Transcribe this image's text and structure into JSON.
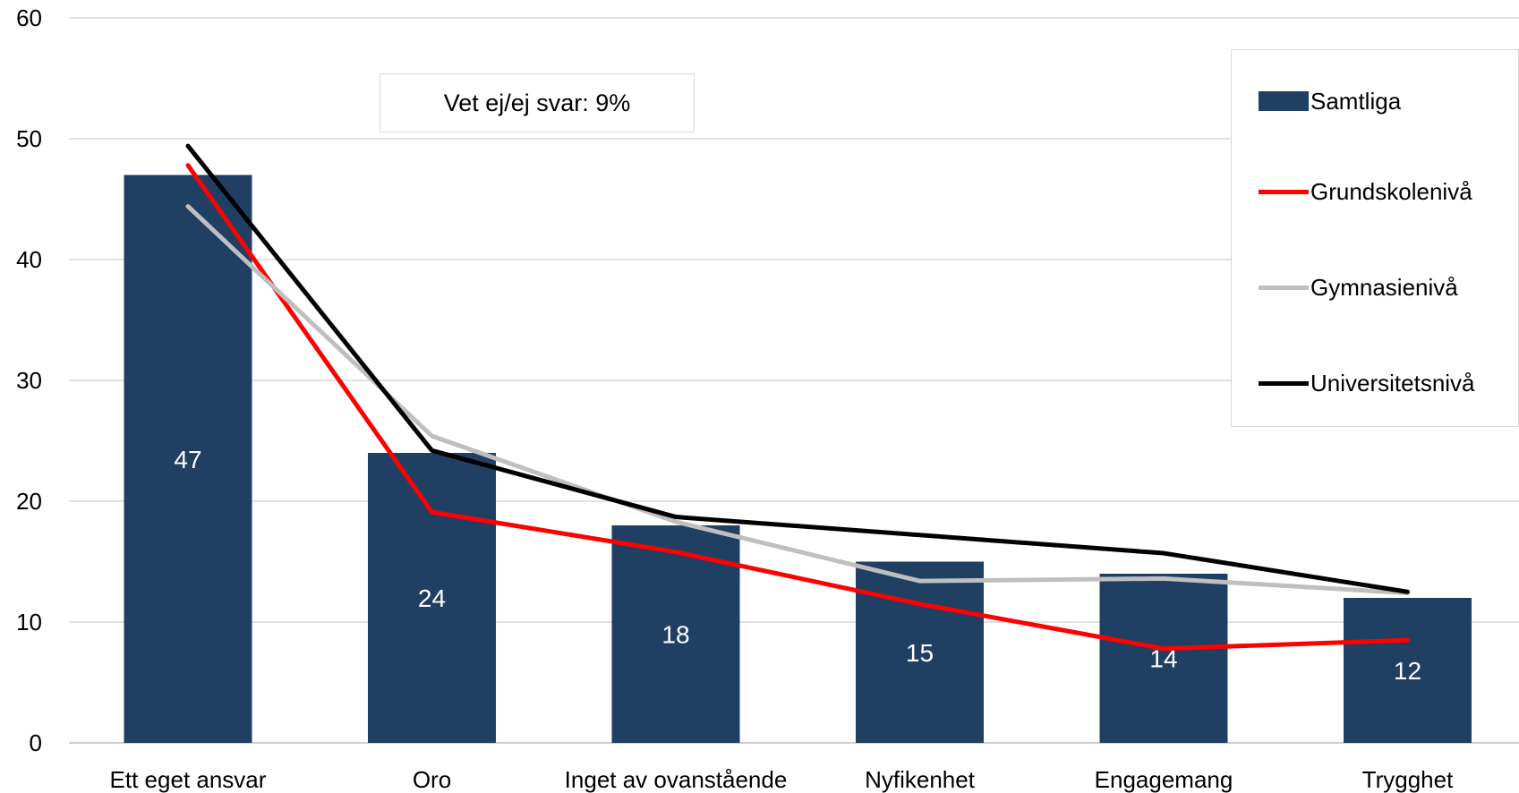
{
  "chart_data": {
    "type": "bar",
    "categories": [
      "Ett eget ansvar",
      "Oro",
      "Inget av ovanstående",
      "Nyfikenhet",
      "Engagemang",
      "Trygghet"
    ],
    "ylim": [
      0,
      60
    ],
    "yticks": [
      0,
      10,
      20,
      30,
      40,
      50,
      60
    ],
    "grid": true,
    "legend_position": "right",
    "annotation": "Vet ej/ej svar: 9%",
    "series": [
      {
        "name": "Samtliga",
        "type": "bar",
        "color": "#1f3f63",
        "values": [
          47,
          24,
          18,
          15,
          14,
          12
        ],
        "labels": [
          "47",
          "24",
          "18",
          "15",
          "14",
          "12"
        ]
      },
      {
        "name": "Grundskolenivå",
        "type": "line",
        "color": "#ff0000",
        "values": [
          47.8,
          19.1,
          15.8,
          11.5,
          7.8,
          8.5
        ]
      },
      {
        "name": "Gymnasienivå",
        "type": "line",
        "color": "#bfbfbf",
        "values": [
          44.4,
          25.4,
          18.3,
          13.4,
          13.6,
          12.4
        ]
      },
      {
        "name": "Universitetsnivå",
        "type": "line",
        "color": "#000000",
        "values": [
          49.4,
          24.2,
          18.7,
          17.2,
          15.7,
          12.5
        ]
      }
    ]
  }
}
